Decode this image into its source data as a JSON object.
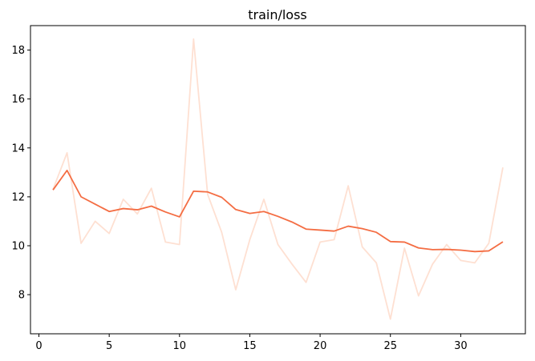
{
  "chart_data": {
    "type": "line",
    "title": "train/loss",
    "xlabel": "",
    "ylabel": "",
    "xlim": [
      -0.6,
      34.6
    ],
    "ylim": [
      6.4,
      19.0
    ],
    "xticks": [
      0,
      5,
      10,
      15,
      20,
      25,
      30
    ],
    "yticks": [
      8,
      10,
      12,
      14,
      16,
      18
    ],
    "grid": false,
    "legend": "none",
    "x": [
      1,
      2,
      3,
      4,
      5,
      6,
      7,
      8,
      9,
      10,
      11,
      12,
      13,
      14,
      15,
      16,
      17,
      18,
      19,
      20,
      21,
      22,
      23,
      24,
      25,
      26,
      27,
      28,
      29,
      30,
      31,
      32,
      33
    ],
    "series": [
      {
        "role": "raw",
        "color": "#fee0d2",
        "values": [
          12.3,
          13.8,
          10.1,
          11.0,
          10.5,
          11.9,
          11.3,
          12.35,
          10.15,
          10.05,
          18.45,
          12.1,
          10.55,
          8.2,
          10.25,
          11.9,
          10.05,
          9.25,
          8.5,
          10.15,
          10.25,
          12.45,
          9.95,
          9.3,
          7.0,
          9.9,
          7.95,
          9.25,
          10.05,
          9.4,
          9.3,
          10.1,
          13.2
        ]
      },
      {
        "role": "smoothed",
        "color": "#f46d43",
        "values": [
          12.28,
          13.08,
          12.0,
          11.7,
          11.4,
          11.52,
          11.47,
          11.62,
          11.38,
          11.18,
          12.23,
          12.2,
          11.98,
          11.48,
          11.32,
          11.4,
          11.2,
          10.97,
          10.68,
          10.64,
          10.6,
          10.8,
          10.7,
          10.55,
          10.17,
          10.15,
          9.91,
          9.84,
          9.85,
          9.82,
          9.76,
          9.79,
          10.16
        ]
      }
    ]
  }
}
